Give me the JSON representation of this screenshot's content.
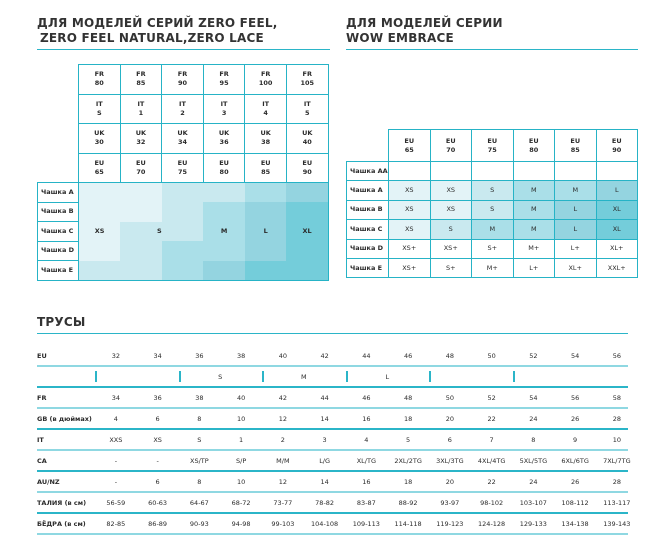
{
  "left_title": [
    "ДЛЯ МОДЕЛЕЙ СЕРИЙ ZERO FEEL,",
    "ZERO FEEL NATURAL,ZERO LACE"
  ],
  "right_title": [
    "ДЛЯ МОДЕЛЕЙ СЕРИИ",
    "WOW EMBRACE"
  ],
  "left_table": {
    "header_rows": [
      [
        "FR 80",
        "FR 85",
        "FR 90",
        "FR 95",
        "FR 100",
        "FR 105"
      ],
      [
        "IT S",
        "IT 1",
        "IT 2",
        "IT 3",
        "IT 4",
        "IT 5"
      ],
      [
        "UK 30",
        "UK 32",
        "UK 34",
        "UK 36",
        "UK 38",
        "UK 40"
      ],
      [
        "EU 65",
        "EU 70",
        "EU 75",
        "EU 80",
        "EU 85",
        "EU 90"
      ]
    ],
    "cups": [
      "Чашка A",
      "Чашка B",
      "Чашка C",
      "Чашка D",
      "Чашка E"
    ],
    "size_labels": [
      "XS",
      "S",
      "M",
      "L",
      "XL"
    ],
    "shade_levels": [
      [
        0,
        0,
        1,
        1,
        2,
        3
      ],
      [
        0,
        0,
        1,
        2,
        3,
        4
      ],
      [
        0,
        1,
        1,
        2,
        3,
        4
      ],
      [
        0,
        1,
        2,
        2,
        3,
        4
      ],
      [
        1,
        1,
        2,
        3,
        4,
        4
      ]
    ]
  },
  "right_table": {
    "header": [
      "EU 65",
      "EU 70",
      "EU 75",
      "EU 80",
      "EU 85",
      "EU 90"
    ],
    "rows": [
      {
        "cup": "Чашка AA",
        "sizes": [
          "",
          "",
          "",
          "",
          "",
          ""
        ],
        "shade": [
          -1,
          -1,
          -1,
          -1,
          -1,
          -1
        ]
      },
      {
        "cup": "Чашка A",
        "sizes": [
          "XS",
          "XS",
          "S",
          "M",
          "M",
          "L"
        ],
        "shade": [
          0,
          0,
          1,
          2,
          2,
          3
        ]
      },
      {
        "cup": "Чашка B",
        "sizes": [
          "XS",
          "XS",
          "S",
          "M",
          "L",
          "XL"
        ],
        "shade": [
          0,
          0,
          1,
          2,
          3,
          4
        ]
      },
      {
        "cup": "Чашка C",
        "sizes": [
          "XS",
          "S",
          "M",
          "M",
          "L",
          "XL"
        ],
        "shade": [
          0,
          1,
          2,
          2,
          3,
          4
        ]
      },
      {
        "cup": "Чашка D",
        "sizes": [
          "XS+",
          "XS+",
          "S+",
          "M+",
          "L+",
          "XL+"
        ],
        "shade": [
          -1,
          -1,
          -1,
          -1,
          -1,
          -1
        ]
      },
      {
        "cup": "Чашка E",
        "sizes": [
          "XS+",
          "S+",
          "M+",
          "L+",
          "XL+",
          "XXL+"
        ],
        "shade": [
          -1,
          -1,
          -1,
          -1,
          -1,
          -1
        ]
      }
    ]
  },
  "colors": {
    "accent": "#26b3c6",
    "shades": [
      "#e3f3f7",
      "#c9e9ef",
      "#aadfe8",
      "#94d4e0",
      "#74cdda"
    ]
  },
  "panties_title": "ТРУСЫ",
  "panties": {
    "size_groups": [
      {
        "label": "",
        "span": 2
      },
      {
        "label": "S",
        "span": 2
      },
      {
        "label": "M",
        "span": 2
      },
      {
        "label": "L",
        "span": 2
      },
      {
        "label": "",
        "span": 2
      },
      {
        "label": "",
        "span": 3
      }
    ],
    "rows": [
      {
        "label": "EU",
        "values": [
          "32",
          "34",
          "36",
          "38",
          "40",
          "42",
          "44",
          "46",
          "48",
          "50",
          "52",
          "54",
          "56"
        ]
      },
      {
        "label": "",
        "sizes": true
      },
      {
        "label": "FR",
        "values": [
          "34",
          "36",
          "38",
          "40",
          "42",
          "44",
          "46",
          "48",
          "50",
          "52",
          "54",
          "56",
          "58"
        ]
      },
      {
        "label": "GB (в дюймах)",
        "values": [
          "4",
          "6",
          "8",
          "10",
          "12",
          "14",
          "16",
          "18",
          "20",
          "22",
          "24",
          "26",
          "28"
        ]
      },
      {
        "label": "IT",
        "values": [
          "XXS",
          "XS",
          "S",
          "1",
          "2",
          "3",
          "4",
          "5",
          "6",
          "7",
          "8",
          "9",
          "10"
        ]
      },
      {
        "label": "CA",
        "values": [
          "-",
          "-",
          "XS/TP",
          "S/P",
          "M/M",
          "L/G",
          "XL/TG",
          "2XL/2TG",
          "3XL/3TG",
          "4XL/4TG",
          "5XL/5TG",
          "6XL/6TG",
          "7XL/7TG"
        ]
      },
      {
        "label": "AU/NZ",
        "values": [
          "-",
          "6",
          "8",
          "10",
          "12",
          "14",
          "16",
          "18",
          "20",
          "22",
          "24",
          "26",
          "28"
        ]
      },
      {
        "label": "ТАЛИЯ (в см)",
        "values": [
          "56-59",
          "60-63",
          "64-67",
          "68-72",
          "73-77",
          "78-82",
          "83-87",
          "88-92",
          "93-97",
          "98-102",
          "103-107",
          "108-112",
          "113-117"
        ]
      },
      {
        "label": "БЁДРА (в см)",
        "values": [
          "82-85",
          "86-89",
          "90-93",
          "94-98",
          "99-103",
          "104-108",
          "109-113",
          "114-118",
          "119-123",
          "124-128",
          "129-133",
          "134-138",
          "139-143"
        ]
      }
    ]
  }
}
